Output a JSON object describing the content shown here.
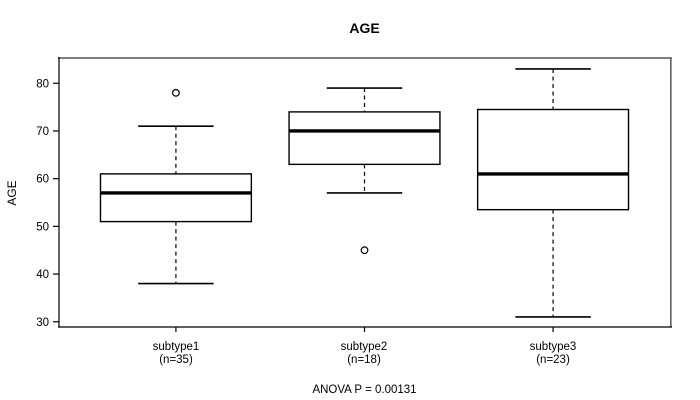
{
  "chart_data": {
    "type": "boxplot",
    "title": "AGE",
    "ylabel": "AGE",
    "note": "ANOVA P = 0.00131",
    "ylim": [
      28.9,
      85.3
    ],
    "yticks": [
      30,
      40,
      50,
      60,
      70,
      80
    ],
    "grid": false,
    "groups": [
      {
        "label": "subtype1",
        "n_label": "(n=35)",
        "n": 35,
        "whisker_low": 38,
        "q1": 51,
        "median": 57,
        "q3": 61,
        "whisker_high": 71,
        "outliers": [
          78
        ]
      },
      {
        "label": "subtype2",
        "n_label": "(n=18)",
        "n": 18,
        "whisker_low": 57,
        "q1": 63,
        "median": 70,
        "q3": 74,
        "whisker_high": 79,
        "outliers": [
          45
        ]
      },
      {
        "label": "subtype3",
        "n_label": "(n=23)",
        "n": 23,
        "whisker_low": 31,
        "q1": 53.5,
        "median": 61,
        "q3": 74.5,
        "whisker_high": 83,
        "outliers": []
      }
    ],
    "colors": {
      "box_fill": "#ffffff",
      "line": "#000000",
      "frame_top": "#7f7f7f",
      "frame_right": "#5f5f5f"
    }
  }
}
